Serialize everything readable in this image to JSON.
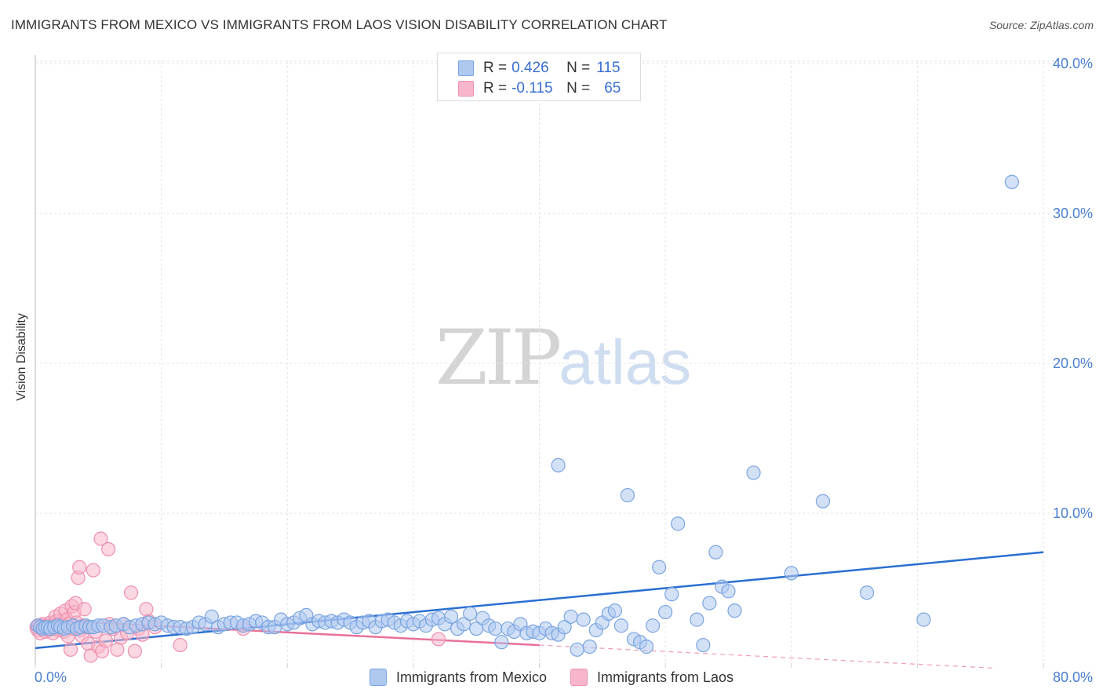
{
  "title": "IMMIGRANTS FROM MEXICO VS IMMIGRANTS FROM LAOS VISION DISABILITY CORRELATION CHART",
  "source": "Source: ZipAtlas.com",
  "watermark": {
    "part1": "ZIP",
    "part2": "atlas"
  },
  "colors": {
    "mexico_fill": "#aec8f0",
    "mexico_stroke": "#7aa5e0",
    "mexico_line": "#2a6fd1",
    "laos_fill": "#f7b6cb",
    "laos_stroke": "#ee8fae",
    "laos_line": "#e8709a",
    "grid": "#e3e3e3",
    "tick": "#4a7fd0"
  },
  "legend_top": {
    "rows": [
      {
        "r_label": "R =",
        "r_value": "0.426",
        "n_label": "N =",
        "n_value": "115"
      },
      {
        "r_label": "R =",
        "r_value": "-0.115",
        "n_label": "N =",
        "n_value": "65"
      }
    ]
  },
  "legend_bottom": {
    "mexico": "Immigrants from Mexico",
    "laos": "Immigrants from Laos"
  },
  "chart_data": {
    "type": "scatter",
    "title": "IMMIGRANTS FROM MEXICO VS IMMIGRANTS FROM LAOS VISION DISABILITY CORRELATION CHART",
    "xlabel": "",
    "ylabel": "Vision Disability",
    "xlim": [
      0,
      80
    ],
    "ylim": [
      0,
      41
    ],
    "x_tick_labels": [
      "0.0%",
      "80.0%"
    ],
    "y_ticks": [
      10,
      20,
      30,
      40
    ],
    "y_tick_labels": [
      "10.0%",
      "20.0%",
      "30.0%",
      "40.0%"
    ],
    "grid": true,
    "series": [
      {
        "name": "Immigrants from Mexico",
        "r": 0.426,
        "n": 115,
        "trend": {
          "x0": 0,
          "y0": 1.0,
          "x1": 80,
          "y1": 7.4,
          "dashed_from": null
        },
        "points": [
          [
            0.2,
            2.5
          ],
          [
            0.4,
            2.4
          ],
          [
            0.6,
            2.3
          ],
          [
            0.8,
            2.4
          ],
          [
            1.0,
            2.4
          ],
          [
            1.2,
            2.3
          ],
          [
            1.5,
            2.4
          ],
          [
            1.8,
            2.5
          ],
          [
            2.0,
            2.4
          ],
          [
            2.3,
            2.3
          ],
          [
            2.6,
            2.4
          ],
          [
            3.0,
            2.5
          ],
          [
            3.3,
            2.3
          ],
          [
            3.6,
            2.4
          ],
          [
            4.0,
            2.5
          ],
          [
            4.3,
            2.4
          ],
          [
            4.6,
            2.4
          ],
          [
            5.0,
            2.5
          ],
          [
            5.4,
            2.5
          ],
          [
            6.0,
            2.4
          ],
          [
            6.4,
            2.5
          ],
          [
            7.0,
            2.6
          ],
          [
            7.5,
            2.4
          ],
          [
            8.0,
            2.5
          ],
          [
            8.5,
            2.6
          ],
          [
            9.0,
            2.7
          ],
          [
            9.5,
            2.6
          ],
          [
            10.0,
            2.7
          ],
          [
            10.5,
            2.5
          ],
          [
            11.0,
            2.4
          ],
          [
            11.5,
            2.4
          ],
          [
            12.0,
            2.3
          ],
          [
            12.5,
            2.4
          ],
          [
            13.0,
            2.7
          ],
          [
            13.5,
            2.6
          ],
          [
            14.0,
            3.1
          ],
          [
            14.5,
            2.4
          ],
          [
            15.0,
            2.6
          ],
          [
            15.5,
            2.7
          ],
          [
            16.0,
            2.7
          ],
          [
            16.5,
            2.5
          ],
          [
            17.0,
            2.6
          ],
          [
            17.5,
            2.8
          ],
          [
            18.0,
            2.7
          ],
          [
            18.5,
            2.4
          ],
          [
            19.0,
            2.4
          ],
          [
            19.5,
            2.9
          ],
          [
            20.0,
            2.6
          ],
          [
            20.5,
            2.7
          ],
          [
            21.0,
            3.0
          ],
          [
            21.5,
            3.2
          ],
          [
            22.0,
            2.6
          ],
          [
            22.5,
            2.8
          ],
          [
            23.0,
            2.7
          ],
          [
            23.5,
            2.8
          ],
          [
            24.0,
            2.7
          ],
          [
            24.5,
            2.9
          ],
          [
            25.0,
            2.7
          ],
          [
            25.5,
            2.4
          ],
          [
            26.0,
            2.7
          ],
          [
            26.5,
            2.8
          ],
          [
            27.0,
            2.4
          ],
          [
            27.5,
            2.8
          ],
          [
            28.0,
            2.9
          ],
          [
            28.5,
            2.7
          ],
          [
            29.0,
            2.5
          ],
          [
            29.5,
            2.8
          ],
          [
            30.0,
            2.6
          ],
          [
            30.5,
            2.8
          ],
          [
            31.0,
            2.5
          ],
          [
            31.5,
            2.9
          ],
          [
            32.0,
            3.0
          ],
          [
            32.5,
            2.6
          ],
          [
            33.0,
            3.1
          ],
          [
            33.5,
            2.3
          ],
          [
            34.0,
            2.6
          ],
          [
            34.5,
            3.3
          ],
          [
            35.0,
            2.3
          ],
          [
            35.5,
            3.0
          ],
          [
            36.0,
            2.5
          ],
          [
            36.5,
            2.3
          ],
          [
            37.0,
            1.4
          ],
          [
            37.5,
            2.3
          ],
          [
            38.0,
            2.1
          ],
          [
            38.5,
            2.6
          ],
          [
            39.0,
            2.0
          ],
          [
            39.5,
            2.1
          ],
          [
            40.0,
            2.0
          ],
          [
            40.5,
            2.3
          ],
          [
            41.0,
            2.0
          ],
          [
            41.5,
            1.9
          ],
          [
            42.0,
            2.4
          ],
          [
            42.5,
            3.1
          ],
          [
            43.0,
            0.9
          ],
          [
            43.5,
            2.9
          ],
          [
            44.0,
            1.1
          ],
          [
            44.5,
            2.2
          ],
          [
            45.0,
            2.7
          ],
          [
            45.5,
            3.3
          ],
          [
            46.0,
            3.5
          ],
          [
            46.5,
            2.5
          ],
          [
            47.0,
            11.2
          ],
          [
            47.5,
            1.6
          ],
          [
            48.0,
            1.4
          ],
          [
            48.5,
            1.1
          ],
          [
            49.0,
            2.5
          ],
          [
            49.5,
            6.4
          ],
          [
            50.0,
            3.4
          ],
          [
            50.5,
            4.6
          ],
          [
            51.0,
            9.3
          ],
          [
            52.5,
            2.9
          ],
          [
            53.0,
            1.2
          ],
          [
            53.5,
            4.0
          ],
          [
            54.0,
            7.4
          ],
          [
            54.5,
            5.1
          ],
          [
            55.0,
            4.8
          ],
          [
            55.5,
            3.5
          ],
          [
            57.0,
            12.7
          ],
          [
            60.0,
            6.0
          ],
          [
            62.5,
            10.8
          ],
          [
            66.0,
            4.7
          ],
          [
            70.5,
            2.9
          ],
          [
            77.5,
            32.1
          ],
          [
            41.5,
            13.2
          ]
        ]
      },
      {
        "name": "Immigrants from Laos",
        "r": -0.115,
        "n": 65,
        "trend": {
          "x0": 0,
          "y0": 2.9,
          "x1": 80,
          "y1": -0.5,
          "dashed_from": 40
        },
        "points": [
          [
            0.1,
            2.4
          ],
          [
            0.2,
            2.2
          ],
          [
            0.3,
            2.5
          ],
          [
            0.4,
            2.0
          ],
          [
            0.5,
            2.3
          ],
          [
            0.6,
            2.6
          ],
          [
            0.7,
            2.4
          ],
          [
            0.8,
            2.1
          ],
          [
            0.9,
            2.3
          ],
          [
            1.0,
            2.5
          ],
          [
            1.1,
            2.2
          ],
          [
            1.2,
            2.7
          ],
          [
            1.3,
            2.4
          ],
          [
            1.4,
            2.0
          ],
          [
            1.5,
            2.3
          ],
          [
            1.6,
            3.1
          ],
          [
            1.7,
            2.8
          ],
          [
            1.8,
            2.6
          ],
          [
            1.9,
            2.2
          ],
          [
            2.0,
            3.3
          ],
          [
            2.1,
            2.4
          ],
          [
            2.2,
            2.5
          ],
          [
            2.3,
            2.1
          ],
          [
            2.4,
            3.5
          ],
          [
            2.5,
            2.9
          ],
          [
            2.6,
            1.8
          ],
          [
            2.7,
            2.6
          ],
          [
            2.8,
            0.9
          ],
          [
            2.9,
            3.8
          ],
          [
            3.0,
            2.3
          ],
          [
            3.1,
            3.4
          ],
          [
            3.2,
            4.0
          ],
          [
            3.3,
            2.7
          ],
          [
            3.4,
            5.7
          ],
          [
            3.5,
            6.4
          ],
          [
            3.6,
            2.2
          ],
          [
            3.7,
            1.8
          ],
          [
            3.8,
            2.5
          ],
          [
            3.9,
            3.6
          ],
          [
            4.0,
            2.4
          ],
          [
            4.2,
            1.3
          ],
          [
            4.4,
            0.5
          ],
          [
            4.6,
            6.2
          ],
          [
            4.8,
            2.1
          ],
          [
            5.0,
            1.1
          ],
          [
            5.3,
            0.8
          ],
          [
            5.6,
            1.5
          ],
          [
            5.9,
            2.6
          ],
          [
            6.2,
            2.3
          ],
          [
            6.5,
            0.9
          ],
          [
            6.8,
            1.7
          ],
          [
            7.0,
            2.6
          ],
          [
            7.3,
            2.0
          ],
          [
            7.6,
            4.7
          ],
          [
            7.9,
            0.8
          ],
          [
            8.2,
            2.3
          ],
          [
            8.5,
            1.9
          ],
          [
            8.8,
            3.6
          ],
          [
            9.0,
            2.8
          ],
          [
            9.5,
            2.4
          ],
          [
            11.5,
            1.2
          ],
          [
            16.5,
            2.3
          ],
          [
            32.0,
            1.6
          ],
          [
            5.2,
            8.3
          ],
          [
            5.8,
            7.6
          ]
        ]
      }
    ]
  }
}
